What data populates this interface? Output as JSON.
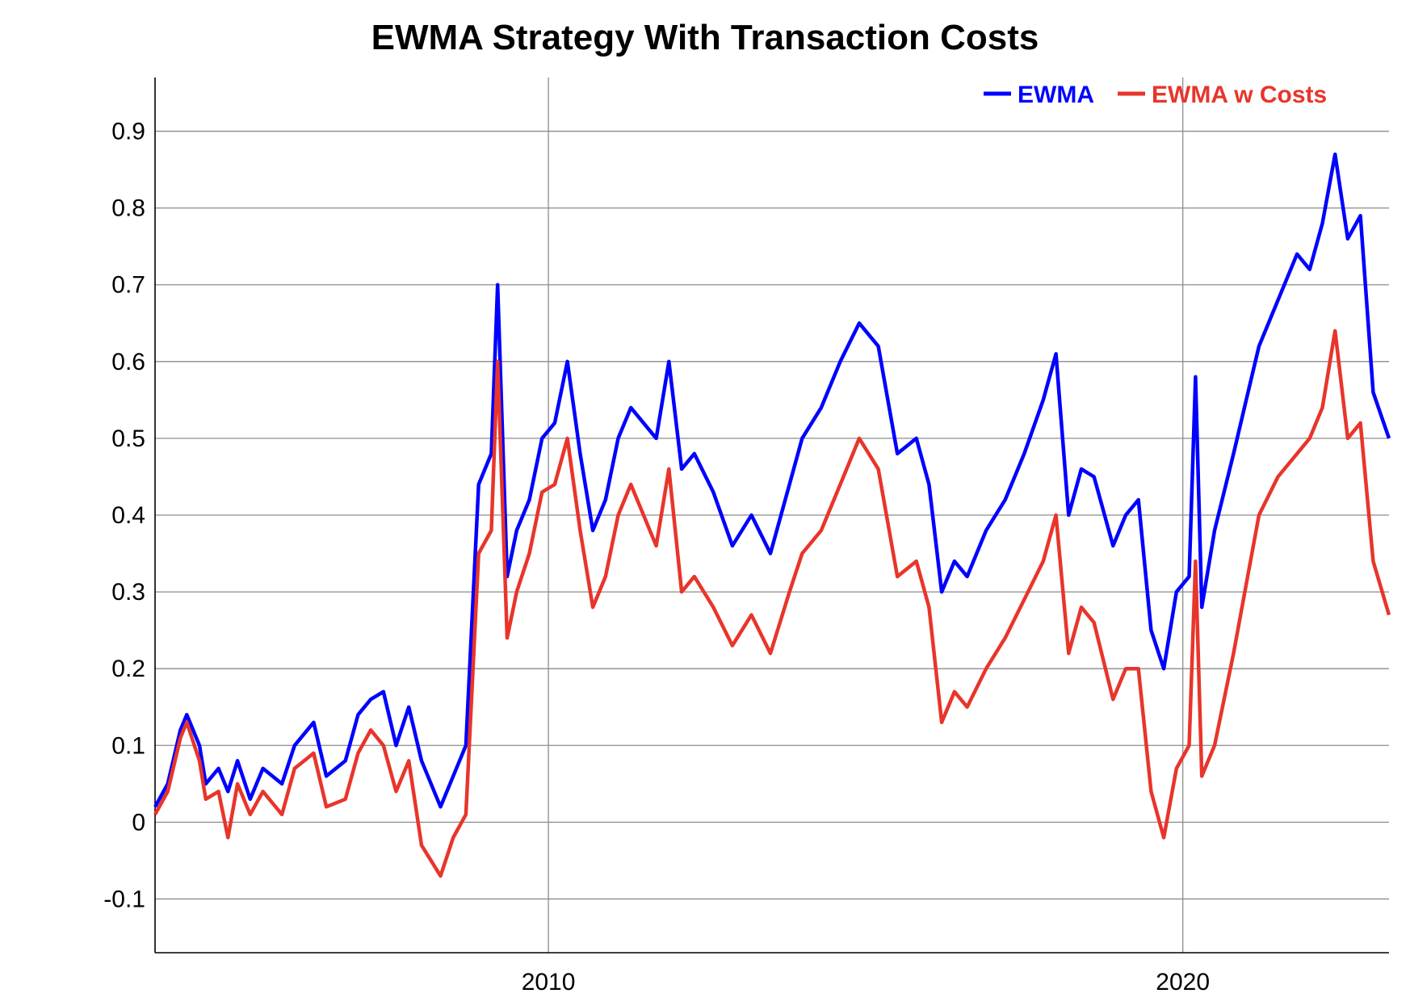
{
  "chart_data": {
    "type": "line",
    "title": "EWMA Strategy With Transaction Costs",
    "xlabel": "",
    "ylabel": "",
    "xlim": [
      2003.8,
      2023.25
    ],
    "ylim": [
      -0.17,
      0.97
    ],
    "x_ticks": [
      2010,
      2020
    ],
    "y_ticks": [
      -0.1,
      0,
      0.1,
      0.2,
      0.3,
      0.4,
      0.5,
      0.6,
      0.7,
      0.8,
      0.9
    ],
    "y_tick_labels": [
      "-0.1",
      "0",
      "0.1",
      "0.2",
      "0.3",
      "0.4",
      "0.5",
      "0.6",
      "0.7",
      "0.8",
      "0.9"
    ],
    "x_tick_labels": [
      "2010",
      "2020"
    ],
    "grid": true,
    "legend_position": "top-right",
    "series": [
      {
        "name": "EWMA",
        "color": "#0000ff",
        "x": [
          2003.8,
          2004.0,
          2004.2,
          2004.3,
          2004.5,
          2004.6,
          2004.8,
          2004.95,
          2005.1,
          2005.3,
          2005.5,
          2005.8,
          2006.0,
          2006.3,
          2006.5,
          2006.8,
          2007.0,
          2007.2,
          2007.4,
          2007.6,
          2007.8,
          2008.0,
          2008.3,
          2008.5,
          2008.7,
          2008.9,
          2009.1,
          2009.2,
          2009.35,
          2009.5,
          2009.7,
          2009.9,
          2010.1,
          2010.3,
          2010.5,
          2010.7,
          2010.9,
          2011.1,
          2011.3,
          2011.5,
          2011.7,
          2011.9,
          2012.1,
          2012.3,
          2012.6,
          2012.9,
          2013.2,
          2013.5,
          2013.8,
          2014.0,
          2014.3,
          2014.6,
          2014.9,
          2015.2,
          2015.5,
          2015.8,
          2016.0,
          2016.2,
          2016.4,
          2016.6,
          2016.9,
          2017.2,
          2017.5,
          2017.8,
          2018.0,
          2018.2,
          2018.4,
          2018.6,
          2018.9,
          2019.1,
          2019.3,
          2019.5,
          2019.7,
          2019.9,
          2020.1,
          2020.2,
          2020.3,
          2020.5,
          2020.8,
          2021.0,
          2021.2,
          2021.5,
          2021.8,
          2022.0,
          2022.2,
          2022.4,
          2022.6,
          2022.8,
          2023.0,
          2023.25
        ],
        "values": [
          0.02,
          0.05,
          0.12,
          0.14,
          0.1,
          0.05,
          0.07,
          0.04,
          0.08,
          0.03,
          0.07,
          0.05,
          0.1,
          0.13,
          0.06,
          0.08,
          0.14,
          0.16,
          0.17,
          0.1,
          0.15,
          0.08,
          0.02,
          0.06,
          0.1,
          0.44,
          0.48,
          0.7,
          0.32,
          0.38,
          0.42,
          0.5,
          0.52,
          0.6,
          0.48,
          0.38,
          0.42,
          0.5,
          0.54,
          0.52,
          0.5,
          0.6,
          0.46,
          0.48,
          0.43,
          0.36,
          0.4,
          0.35,
          0.44,
          0.5,
          0.54,
          0.6,
          0.65,
          0.62,
          0.48,
          0.5,
          0.44,
          0.3,
          0.34,
          0.32,
          0.38,
          0.42,
          0.48,
          0.55,
          0.61,
          0.4,
          0.46,
          0.45,
          0.36,
          0.4,
          0.42,
          0.25,
          0.2,
          0.3,
          0.32,
          0.58,
          0.28,
          0.38,
          0.48,
          0.55,
          0.62,
          0.68,
          0.74,
          0.72,
          0.78,
          0.87,
          0.76,
          0.79,
          0.56,
          0.5
        ]
      },
      {
        "name": "EWMA w Costs",
        "color": "#e8352b",
        "x": [
          2003.8,
          2004.0,
          2004.2,
          2004.3,
          2004.5,
          2004.6,
          2004.8,
          2004.95,
          2005.1,
          2005.3,
          2005.5,
          2005.8,
          2006.0,
          2006.3,
          2006.5,
          2006.8,
          2007.0,
          2007.2,
          2007.4,
          2007.6,
          2007.8,
          2008.0,
          2008.3,
          2008.5,
          2008.7,
          2008.9,
          2009.1,
          2009.2,
          2009.35,
          2009.5,
          2009.7,
          2009.9,
          2010.1,
          2010.3,
          2010.5,
          2010.7,
          2010.9,
          2011.1,
          2011.3,
          2011.5,
          2011.7,
          2011.9,
          2012.1,
          2012.3,
          2012.6,
          2012.9,
          2013.2,
          2013.5,
          2013.8,
          2014.0,
          2014.3,
          2014.6,
          2014.9,
          2015.2,
          2015.5,
          2015.8,
          2016.0,
          2016.2,
          2016.4,
          2016.6,
          2016.9,
          2017.2,
          2017.5,
          2017.8,
          2018.0,
          2018.2,
          2018.4,
          2018.6,
          2018.9,
          2019.1,
          2019.3,
          2019.5,
          2019.7,
          2019.9,
          2020.1,
          2020.2,
          2020.3,
          2020.5,
          2020.8,
          2021.0,
          2021.2,
          2021.5,
          2021.8,
          2022.0,
          2022.2,
          2022.4,
          2022.6,
          2022.8,
          2023.0,
          2023.25
        ],
        "values": [
          0.01,
          0.04,
          0.11,
          0.13,
          0.08,
          0.03,
          0.04,
          -0.02,
          0.05,
          0.01,
          0.04,
          0.01,
          0.07,
          0.09,
          0.02,
          0.03,
          0.09,
          0.12,
          0.1,
          0.04,
          0.08,
          -0.03,
          -0.07,
          -0.02,
          0.01,
          0.35,
          0.38,
          0.6,
          0.24,
          0.3,
          0.35,
          0.43,
          0.44,
          0.5,
          0.38,
          0.28,
          0.32,
          0.4,
          0.44,
          0.4,
          0.36,
          0.46,
          0.3,
          0.32,
          0.28,
          0.23,
          0.27,
          0.22,
          0.3,
          0.35,
          0.38,
          0.44,
          0.5,
          0.46,
          0.32,
          0.34,
          0.28,
          0.13,
          0.17,
          0.15,
          0.2,
          0.24,
          0.29,
          0.34,
          0.4,
          0.22,
          0.28,
          0.26,
          0.16,
          0.2,
          0.2,
          0.04,
          -0.02,
          0.07,
          0.1,
          0.34,
          0.06,
          0.1,
          0.22,
          0.31,
          0.4,
          0.45,
          0.48,
          0.5,
          0.54,
          0.64,
          0.5,
          0.52,
          0.34,
          0.27
        ]
      }
    ]
  }
}
